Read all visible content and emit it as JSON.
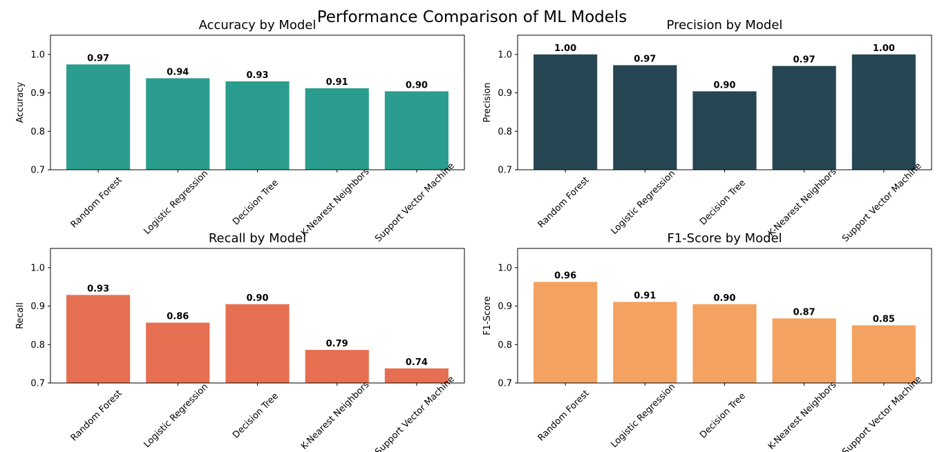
{
  "title": "Performance Comparison of ML Models",
  "chart_data": [
    {
      "type": "bar",
      "title": "Accuracy by Model",
      "ylabel": "Accuracy",
      "xlabel": "",
      "categories": [
        "Random Forest",
        "Logistic Regression",
        "Decision Tree",
        "K-Nearest Neighbors",
        "Support Vector Machine"
      ],
      "values": [
        0.974,
        0.938,
        0.93,
        0.912,
        0.904
      ],
      "value_labels": [
        "0.97",
        "0.94",
        "0.93",
        "0.91",
        "0.90"
      ],
      "ylim": [
        0.7,
        1.05
      ],
      "yticks": [
        "0.7",
        "0.8",
        "0.9",
        "1.0"
      ],
      "color": "#2a9d8f",
      "grid": false
    },
    {
      "type": "bar",
      "title": "Precision by Model",
      "ylabel": "Precision",
      "xlabel": "",
      "categories": [
        "Random Forest",
        "Logistic Regression",
        "Decision Tree",
        "K-Nearest Neighbors",
        "Support Vector Machine"
      ],
      "values": [
        1.0,
        0.972,
        0.904,
        0.97,
        1.0
      ],
      "value_labels": [
        "1.00",
        "0.97",
        "0.90",
        "0.97",
        "1.00"
      ],
      "ylim": [
        0.7,
        1.05
      ],
      "yticks": [
        "0.7",
        "0.8",
        "0.9",
        "1.0"
      ],
      "color": "#264653",
      "grid": false
    },
    {
      "type": "bar",
      "title": "Recall by Model",
      "ylabel": "Recall",
      "xlabel": "",
      "categories": [
        "Random Forest",
        "Logistic Regression",
        "Decision Tree",
        "K-Nearest Neighbors",
        "Support Vector Machine"
      ],
      "values": [
        0.929,
        0.857,
        0.905,
        0.786,
        0.738
      ],
      "value_labels": [
        "0.93",
        "0.86",
        "0.90",
        "0.79",
        "0.74"
      ],
      "ylim": [
        0.7,
        1.05
      ],
      "yticks": [
        "0.7",
        "0.8",
        "0.9",
        "1.0"
      ],
      "color": "#e76f51",
      "grid": false
    },
    {
      "type": "bar",
      "title": "F1-Score by Model",
      "ylabel": "F1-Score",
      "xlabel": "",
      "categories": [
        "Random Forest",
        "Logistic Regression",
        "Decision Tree",
        "K-Nearest Neighbors",
        "Support Vector Machine"
      ],
      "values": [
        0.963,
        0.911,
        0.905,
        0.868,
        0.85
      ],
      "value_labels": [
        "0.96",
        "0.91",
        "0.90",
        "0.87",
        "0.85"
      ],
      "ylim": [
        0.7,
        1.05
      ],
      "yticks": [
        "0.7",
        "0.8",
        "0.9",
        "1.0"
      ],
      "color": "#f4a261",
      "grid": false
    }
  ]
}
